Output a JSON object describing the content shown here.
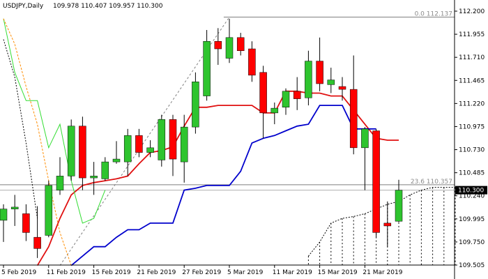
{
  "header": {
    "symbol": "USDJPY,Daily",
    "ohlc": "109.978 110.407 109.957 110.300"
  },
  "fib_labels": {
    "top": "0.0 112.137",
    "mid": "23.6 110.357"
  },
  "current_price_label": "110.300",
  "colors": {
    "bull": "#2ec42e",
    "bear": "#ff0000",
    "tenkan": "#e01010",
    "kijun": "#0000cc",
    "chikou": "#33dd33",
    "projection": "#ff8c00",
    "fib": "#7f7f7f"
  },
  "chart_data": {
    "type": "candlestick",
    "title": "USDJPY,Daily",
    "ylim": [
      109.505,
      112.2
    ],
    "y_ticks": [
      "112.200",
      "111.955",
      "111.710",
      "111.465",
      "111.220",
      "110.975",
      "110.730",
      "110.485",
      "110.240",
      "109.995",
      "109.750",
      "109.505"
    ],
    "x_tick_labels": [
      "5 Feb 2019",
      "11 Feb 2019",
      "15 Feb 2019",
      "21 Feb 2019",
      "27 Feb 2019",
      "5 Mar 2019",
      "11 Mar 2019",
      "15 Mar 2019",
      "21 Mar 2019"
    ],
    "x_tick_index": [
      0,
      4,
      8,
      12,
      16,
      20,
      24,
      28,
      32
    ],
    "total_slots": 41,
    "candles": [
      {
        "o": 109.98,
        "h": 110.15,
        "l": 109.75,
        "c": 110.1
      },
      {
        "o": 110.1,
        "h": 110.25,
        "l": 109.92,
        "c": 110.12
      },
      {
        "o": 110.05,
        "h": 110.15,
        "l": 109.76,
        "c": 109.85
      },
      {
        "o": 109.8,
        "h": 110.13,
        "l": 109.58,
        "c": 109.68
      },
      {
        "o": 109.82,
        "h": 110.4,
        "l": 109.8,
        "c": 110.35
      },
      {
        "o": 110.3,
        "h": 110.65,
        "l": 110.25,
        "c": 110.45
      },
      {
        "o": 110.45,
        "h": 111.05,
        "l": 110.4,
        "c": 110.98
      },
      {
        "o": 110.98,
        "h": 111.08,
        "l": 110.3,
        "c": 110.43
      },
      {
        "o": 110.43,
        "h": 110.6,
        "l": 110.25,
        "c": 110.45
      },
      {
        "o": 110.42,
        "h": 110.65,
        "l": 110.4,
        "c": 110.6
      },
      {
        "o": 110.6,
        "h": 110.82,
        "l": 110.58,
        "c": 110.63
      },
      {
        "o": 110.6,
        "h": 110.95,
        "l": 110.45,
        "c": 110.88
      },
      {
        "o": 110.88,
        "h": 110.95,
        "l": 110.65,
        "c": 110.7
      },
      {
        "o": 110.7,
        "h": 110.83,
        "l": 110.65,
        "c": 110.75
      },
      {
        "o": 110.62,
        "h": 111.1,
        "l": 110.55,
        "c": 111.05
      },
      {
        "o": 111.05,
        "h": 111.1,
        "l": 110.45,
        "c": 110.63
      },
      {
        "o": 110.6,
        "h": 111.1,
        "l": 110.38,
        "c": 110.97
      },
      {
        "o": 110.97,
        "h": 111.55,
        "l": 110.9,
        "c": 111.45
      },
      {
        "o": 111.3,
        "h": 112.0,
        "l": 111.25,
        "c": 111.88
      },
      {
        "o": 111.88,
        "h": 112.02,
        "l": 111.63,
        "c": 111.8
      },
      {
        "o": 111.7,
        "h": 112.12,
        "l": 111.65,
        "c": 111.92
      },
      {
        "o": 111.92,
        "h": 111.97,
        "l": 111.73,
        "c": 111.78
      },
      {
        "o": 111.8,
        "h": 111.88,
        "l": 111.45,
        "c": 111.52
      },
      {
        "o": 111.55,
        "h": 111.62,
        "l": 110.85,
        "c": 111.12
      },
      {
        "o": 111.12,
        "h": 111.23,
        "l": 111.0,
        "c": 111.17
      },
      {
        "o": 111.18,
        "h": 111.38,
        "l": 111.1,
        "c": 111.35
      },
      {
        "o": 111.35,
        "h": 111.5,
        "l": 111.15,
        "c": 111.27
      },
      {
        "o": 111.28,
        "h": 111.78,
        "l": 111.2,
        "c": 111.67
      },
      {
        "o": 111.67,
        "h": 111.92,
        "l": 111.35,
        "c": 111.43
      },
      {
        "o": 111.42,
        "h": 111.6,
        "l": 111.33,
        "c": 111.47
      },
      {
        "o": 111.4,
        "h": 111.5,
        "l": 111.25,
        "c": 111.37
      },
      {
        "o": 111.37,
        "h": 111.73,
        "l": 110.68,
        "c": 110.75
      },
      {
        "o": 110.75,
        "h": 110.97,
        "l": 110.3,
        "c": 110.95
      },
      {
        "o": 110.93,
        "h": 110.95,
        "l": 109.8,
        "c": 109.85
      },
      {
        "o": 109.95,
        "h": 110.18,
        "l": 109.7,
        "c": 109.92
      },
      {
        "o": 109.97,
        "h": 110.41,
        "l": 109.96,
        "c": 110.3
      }
    ],
    "lines": [
      {
        "name": "tenkan",
        "start": 3,
        "values": [
          109.5,
          109.7,
          110.0,
          110.25,
          110.35,
          110.38,
          110.4,
          110.42,
          110.45,
          110.58,
          110.7,
          110.72,
          110.76,
          110.98,
          111.18,
          111.18,
          111.2,
          111.2,
          111.2,
          111.2,
          111.12,
          111.12,
          111.35,
          111.35,
          111.33,
          111.33,
          111.3,
          111.3,
          111.15,
          111.0,
          110.85,
          110.83,
          110.83
        ]
      },
      {
        "name": "kijun",
        "start": 6,
        "values": [
          109.5,
          109.6,
          109.7,
          109.7,
          109.8,
          109.88,
          109.88,
          109.95,
          109.95,
          109.95,
          110.3,
          110.32,
          110.35,
          110.35,
          110.35,
          110.5,
          110.8,
          110.85,
          110.88,
          110.93,
          110.98,
          111.0,
          111.2,
          111.2,
          111.2,
          110.95,
          110.95,
          110.95
        ]
      },
      {
        "name": "chikou",
        "start": 0,
        "values": [
          112.12,
          111.55,
          111.25,
          111.25,
          110.75,
          111.0,
          110.4,
          109.95,
          110.0,
          110.3
        ]
      },
      {
        "name": "projection",
        "start": 0,
        "values": [
          112.12,
          111.85,
          111.4,
          111.0,
          110.4,
          109.85,
          109.5
        ]
      },
      {
        "name": "cloud-edge",
        "start": 27,
        "values": [
          109.6,
          109.75,
          109.95,
          110.0,
          110.02,
          110.05,
          110.1,
          110.15,
          110.18,
          110.25,
          110.3,
          110.33,
          110.33,
          110.33
        ]
      }
    ],
    "fib_levels": [
      {
        "label": "0.0",
        "value": 112.137
      },
      {
        "label": "23.6",
        "value": 110.357
      }
    ],
    "current_price": 110.3
  }
}
